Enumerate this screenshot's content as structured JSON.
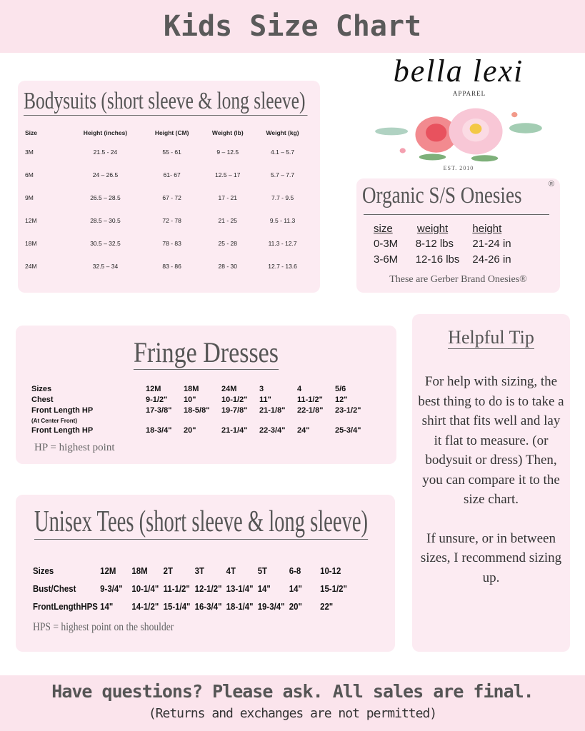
{
  "header": {
    "title": "Kids Size Chart"
  },
  "logo": {
    "brand": "bella lexi",
    "sub": "APPAREL",
    "est": "EST. 2010"
  },
  "bodysuits": {
    "title": "Bodysuits (short sleeve & long sleeve)",
    "columns": [
      "Size",
      "Height (inches)",
      "Height (CM)",
      "Weight (lb)",
      "Weight (kg)"
    ],
    "rows": [
      [
        "3M",
        "21.5 - 24",
        "55 - 61",
        "9 – 12.5",
        "4.1 – 5.7"
      ],
      [
        "6M",
        "24 – 26.5",
        "61- 67",
        "12.5 – 17",
        "5.7 – 7.7"
      ],
      [
        "9M",
        "26.5 – 28.5",
        "67 - 72",
        "17 - 21",
        "7.7 - 9.5"
      ],
      [
        "12M",
        "28.5 – 30.5",
        "72 - 78",
        "21 - 25",
        "9.5 - 11.3"
      ],
      [
        "18M",
        "30.5 – 32.5",
        "78 - 83",
        "25 - 28",
        "11.3 - 12.7"
      ],
      [
        "24M",
        "32.5 – 34",
        "83 - 86",
        "28 - 30",
        "12.7 - 13.6"
      ]
    ]
  },
  "organic": {
    "title": "Organic S/S Onesies",
    "registered": "®",
    "columns": [
      "size",
      "weight",
      "height"
    ],
    "rows": [
      [
        "0-3M",
        "8-12 lbs",
        "21-24 in"
      ],
      [
        "3-6M",
        "12-16 lbs",
        "24-26 in"
      ]
    ],
    "note": "These are Gerber Brand Onesies®"
  },
  "fringe": {
    "title": "Fringe Dresses",
    "rows": [
      [
        "Sizes",
        "12M",
        "18M",
        "24M",
        "3",
        "4",
        "5/6"
      ],
      [
        "Chest",
        "9-1/2\"",
        "10\"",
        "10-1/2\"",
        "11\"",
        "11-1/2\"",
        "12\""
      ],
      [
        "Front Length HP",
        "17-3/8\"",
        "18-5/8\"",
        "19-7/8\"",
        "21-1/8\"",
        "22-1/8\"",
        "23-1/2\""
      ],
      [
        "(At Center Front)",
        "",
        "",
        "",
        "",
        "",
        ""
      ],
      [
        "Front Length HP",
        "18-3/4\"",
        "20\"",
        "21-1/4\"",
        "22-3/4\"",
        "24\"",
        "25-3/4\""
      ]
    ],
    "note": "HP = highest point"
  },
  "tees": {
    "title": "Unisex Tees (short sleeve & long sleeve)",
    "rows": [
      [
        "Sizes",
        "12M",
        "18M",
        "2T",
        "3T",
        "4T",
        "5T",
        "6-8",
        "10-12"
      ],
      [
        "Bust/Chest",
        "9-3/4\"",
        "10-1/4\"",
        "11-1/2\"",
        "12-1/2\"",
        "13-1/4\"",
        "14\"",
        "14\"",
        "15-1/2\""
      ],
      [
        "FrontLengthHPS",
        "14\"",
        "14-1/2\"",
        "15-1/4\"",
        "16-3/4\"",
        "18-1/4\"",
        "19-3/4\"",
        "20\"",
        "22\""
      ]
    ],
    "note": "HPS = highest point on the shoulder"
  },
  "tip": {
    "title": "Helpful Tip",
    "p1": "For help with sizing, the best thing to do is to take a shirt that fits well and lay it flat to measure. (or bodysuit or dress) Then, you can compare it to the size chart.",
    "p2": "If unsure, or in between sizes, I recommend sizing up."
  },
  "footer": {
    "line1": "Have questions? Please ask. All sales are final.",
    "line2": "(Returns and exchanges are not permitted)"
  },
  "colors": {
    "band": "#fbe4ec",
    "panel": "#fcebf2",
    "text": "#555555"
  }
}
